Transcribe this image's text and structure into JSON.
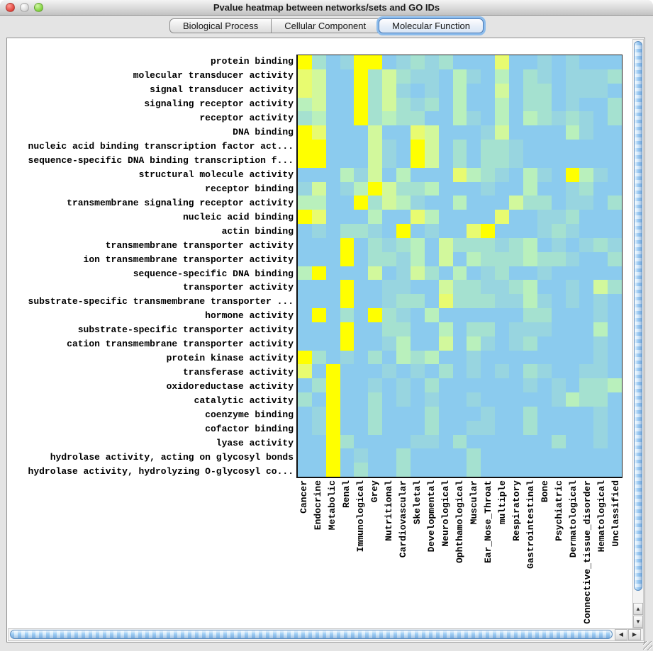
{
  "window": {
    "title": "Pvalue heatmap between networks/sets and GO IDs"
  },
  "tabs": [
    {
      "label": "Biological Process",
      "selected": false
    },
    {
      "label": "Cellular Component",
      "selected": false
    },
    {
      "label": "Molecular Function",
      "selected": true
    }
  ],
  "scrollbars": {
    "up_icon": "▲",
    "down_icon": "▼",
    "left_icon": "◀",
    "right_icon": "▶"
  },
  "chart_data": {
    "type": "heatmap",
    "title": "Pvalue heatmap between networks/sets and GO IDs",
    "rows": [
      "protein binding",
      "molecular transducer activity",
      "signal transducer activity",
      "signaling receptor activity",
      "receptor activity",
      "DNA binding",
      "nucleic acid binding transcription factor act...",
      "sequence-specific DNA binding transcription f...",
      "structural molecule activity",
      "receptor binding",
      "transmembrane signaling receptor activity",
      "nucleic acid binding",
      "actin binding",
      "transmembrane transporter activity",
      "ion transmembrane transporter activity",
      "sequence-specific DNA binding",
      "transporter activity",
      "substrate-specific transmembrane transporter ...",
      "hormone activity",
      "substrate-specific transporter activity",
      "cation transmembrane transporter activity",
      "protein kinase activity",
      "transferase activity",
      "oxidoreductase activity",
      "catalytic activity",
      "coenzyme binding",
      "cofactor binding",
      "lyase activity",
      "hydrolase activity, acting on glycosyl bonds",
      "hydrolase activity, hydrolyzing O-glycosyl co..."
    ],
    "columns": [
      "Cancer",
      "Endocrine",
      "Metabolic",
      "Renal",
      "Immunological",
      "Grey",
      "Nutritional",
      "Cardiovascular",
      "Skeletal",
      "Developmental",
      "Neurological",
      "Ophthamological",
      "Muscular",
      "Ear_Nose_Throat",
      "multiple",
      "Respiratory",
      "Gastrointestinal",
      "Bone",
      "Psychiatric",
      "Dermatological",
      "Connective_tissue_disorder",
      "Hematological",
      "Unclassified"
    ],
    "palette": [
      "#8BCBEE",
      "#98D5E0",
      "#A5E1D0",
      "#B9F0BC",
      "#D2F89C",
      "#E8FB70",
      "#FFFF00"
    ],
    "value_scale": "0 = weakest association (blue) to 6 = strongest association (yellow)",
    "values": [
      [
        6,
        2,
        0,
        1,
        6,
        6,
        0,
        1,
        2,
        1,
        2,
        0,
        0,
        0,
        5,
        0,
        0,
        1,
        0,
        1,
        0,
        0,
        0
      ],
      [
        5,
        4,
        0,
        0,
        6,
        2,
        4,
        2,
        1,
        1,
        0,
        3,
        1,
        0,
        3,
        0,
        2,
        1,
        0,
        1,
        1,
        1,
        2
      ],
      [
        5,
        4,
        0,
        0,
        6,
        2,
        4,
        1,
        0,
        1,
        0,
        3,
        0,
        0,
        4,
        0,
        2,
        2,
        0,
        1,
        1,
        1,
        0
      ],
      [
        3,
        4,
        0,
        0,
        6,
        2,
        4,
        2,
        1,
        2,
        0,
        3,
        0,
        0,
        3,
        0,
        2,
        2,
        0,
        1,
        0,
        0,
        2
      ],
      [
        2,
        3,
        0,
        0,
        6,
        2,
        3,
        2,
        2,
        0,
        0,
        3,
        1,
        0,
        3,
        0,
        3,
        2,
        1,
        2,
        1,
        0,
        2
      ],
      [
        6,
        5,
        0,
        0,
        0,
        4,
        0,
        0,
        5,
        4,
        0,
        0,
        0,
        1,
        4,
        0,
        0,
        0,
        0,
        3,
        1,
        0,
        0
      ],
      [
        6,
        6,
        0,
        0,
        0,
        4,
        1,
        0,
        6,
        4,
        0,
        2,
        0,
        2,
        2,
        1,
        0,
        0,
        0,
        0,
        0,
        0,
        0
      ],
      [
        6,
        6,
        0,
        0,
        0,
        4,
        1,
        0,
        6,
        4,
        0,
        2,
        0,
        2,
        2,
        1,
        0,
        0,
        0,
        0,
        0,
        0,
        0
      ],
      [
        0,
        0,
        0,
        3,
        1,
        4,
        0,
        3,
        0,
        0,
        0,
        5,
        3,
        2,
        1,
        0,
        3,
        1,
        0,
        6,
        3,
        1,
        0
      ],
      [
        1,
        4,
        0,
        1,
        3,
        6,
        4,
        2,
        2,
        3,
        0,
        0,
        0,
        1,
        0,
        0,
        3,
        0,
        0,
        1,
        2,
        0,
        0
      ],
      [
        3,
        3,
        0,
        0,
        6,
        2,
        4,
        3,
        1,
        0,
        0,
        3,
        0,
        0,
        0,
        4,
        2,
        2,
        0,
        1,
        1,
        0,
        2
      ],
      [
        6,
        5,
        0,
        0,
        0,
        3,
        0,
        0,
        5,
        3,
        0,
        0,
        0,
        0,
        5,
        0,
        0,
        1,
        1,
        2,
        0,
        0,
        0
      ],
      [
        0,
        1,
        0,
        2,
        2,
        1,
        0,
        6,
        0,
        1,
        0,
        0,
        5,
        6,
        0,
        0,
        0,
        1,
        2,
        1,
        0,
        0,
        0
      ],
      [
        0,
        0,
        0,
        6,
        0,
        2,
        1,
        2,
        3,
        0,
        4,
        2,
        2,
        2,
        1,
        2,
        3,
        0,
        1,
        0,
        1,
        2,
        1
      ],
      [
        0,
        0,
        0,
        6,
        0,
        2,
        2,
        1,
        3,
        0,
        4,
        0,
        3,
        2,
        2,
        2,
        3,
        2,
        2,
        1,
        0,
        0,
        2
      ],
      [
        3,
        6,
        0,
        0,
        0,
        4,
        0,
        1,
        4,
        2,
        0,
        3,
        0,
        1,
        2,
        0,
        0,
        1,
        0,
        0,
        0,
        0,
        0
      ],
      [
        0,
        0,
        0,
        6,
        0,
        0,
        1,
        1,
        0,
        0,
        4,
        2,
        2,
        1,
        1,
        2,
        3,
        0,
        0,
        1,
        0,
        4,
        2
      ],
      [
        0,
        0,
        0,
        6,
        0,
        0,
        1,
        2,
        2,
        0,
        5,
        2,
        2,
        2,
        1,
        1,
        3,
        1,
        0,
        1,
        0,
        1,
        0
      ],
      [
        0,
        6,
        0,
        2,
        0,
        6,
        2,
        1,
        0,
        3,
        0,
        0,
        0,
        0,
        0,
        0,
        2,
        2,
        0,
        0,
        0,
        1,
        0
      ],
      [
        0,
        0,
        0,
        6,
        0,
        0,
        2,
        2,
        0,
        0,
        3,
        0,
        2,
        2,
        0,
        1,
        1,
        1,
        0,
        0,
        0,
        3,
        0
      ],
      [
        0,
        0,
        0,
        6,
        0,
        0,
        1,
        3,
        0,
        0,
        4,
        0,
        3,
        1,
        0,
        1,
        2,
        0,
        0,
        0,
        0,
        1,
        0
      ],
      [
        6,
        2,
        0,
        1,
        0,
        2,
        0,
        3,
        2,
        3,
        0,
        0,
        1,
        0,
        0,
        0,
        0,
        0,
        0,
        0,
        0,
        1,
        0
      ],
      [
        5,
        0,
        6,
        0,
        0,
        0,
        1,
        0,
        1,
        0,
        2,
        0,
        1,
        0,
        1,
        0,
        2,
        1,
        0,
        0,
        1,
        1,
        0
      ],
      [
        0,
        2,
        6,
        0,
        0,
        1,
        0,
        1,
        0,
        2,
        0,
        0,
        0,
        0,
        0,
        0,
        1,
        0,
        1,
        0,
        2,
        2,
        3
      ],
      [
        2,
        0,
        6,
        0,
        0,
        2,
        0,
        1,
        0,
        1,
        0,
        0,
        1,
        0,
        0,
        0,
        0,
        0,
        1,
        3,
        2,
        2,
        0
      ],
      [
        0,
        1,
        6,
        0,
        0,
        2,
        0,
        0,
        0,
        2,
        0,
        0,
        0,
        1,
        0,
        0,
        2,
        0,
        0,
        0,
        0,
        1,
        0
      ],
      [
        0,
        1,
        6,
        0,
        0,
        2,
        0,
        0,
        0,
        2,
        0,
        0,
        1,
        1,
        0,
        0,
        2,
        0,
        0,
        0,
        0,
        1,
        0
      ],
      [
        0,
        0,
        6,
        2,
        0,
        0,
        0,
        0,
        1,
        1,
        0,
        2,
        0,
        0,
        0,
        0,
        0,
        0,
        2,
        0,
        0,
        1,
        0
      ],
      [
        0,
        0,
        6,
        0,
        1,
        0,
        0,
        2,
        0,
        0,
        0,
        0,
        2,
        0,
        0,
        0,
        0,
        0,
        0,
        0,
        0,
        0,
        0
      ],
      [
        0,
        0,
        6,
        0,
        2,
        0,
        0,
        2,
        0,
        0,
        0,
        0,
        2,
        0,
        0,
        0,
        0,
        0,
        0,
        0,
        0,
        0,
        0
      ]
    ]
  }
}
